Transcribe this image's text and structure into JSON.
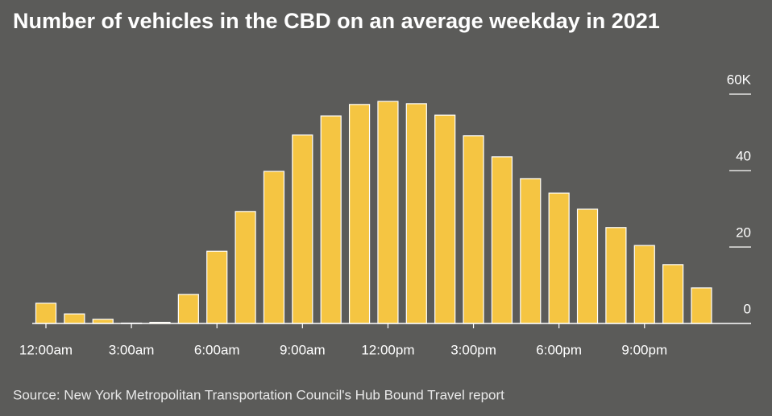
{
  "chart_data": {
    "type": "bar",
    "title": "Number of vehicles in the CBD on an average weekday in 2021",
    "source": "Source: New York Metropolitan Transportation Council's Hub Bound Travel report",
    "categories": [
      "12:00am",
      null,
      null,
      "3:00am",
      null,
      null,
      "6:00am",
      null,
      null,
      "9:00am",
      null,
      null,
      "12:00pm",
      null,
      null,
      "3:00pm",
      null,
      null,
      "6:00pm",
      null,
      null,
      "9:00pm",
      null,
      null
    ],
    "values": [
      5.3,
      2.5,
      1.1,
      0.1,
      0.3,
      7.6,
      18.9,
      29.3,
      39.8,
      49.3,
      54.3,
      57.3,
      58.1,
      57.5,
      54.5,
      49.1,
      43.6,
      37.9,
      34.1,
      29.9,
      25.1,
      20.4,
      15.4,
      9.3
    ],
    "color": "#f5c542",
    "ylim": [
      0,
      60
    ],
    "yticks": [
      0,
      20,
      40,
      {
        "value": 60,
        "label": "60K"
      }
    ],
    "grid": false
  }
}
